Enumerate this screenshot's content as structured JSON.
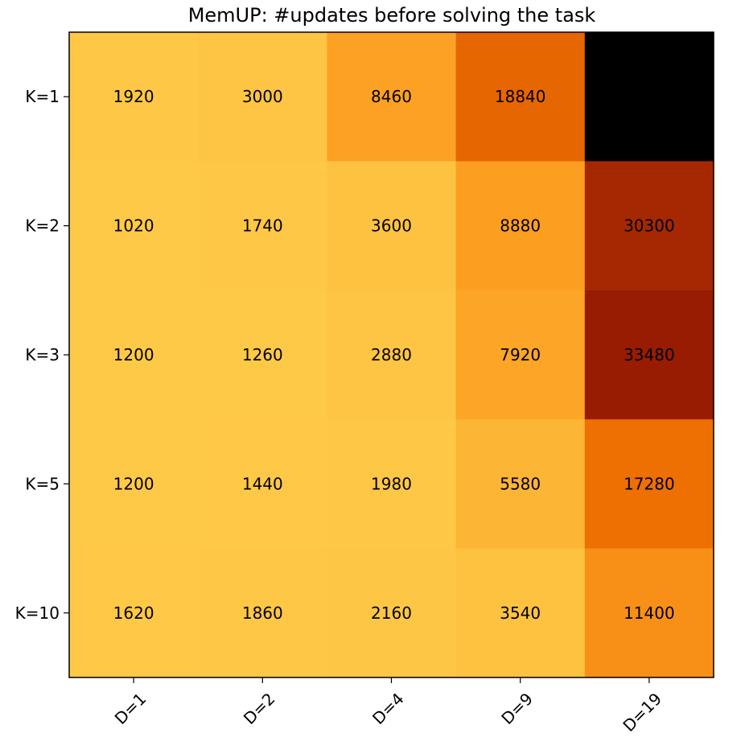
{
  "chart_data": {
    "type": "heatmap",
    "title": "MemUP: #updates before solving the task",
    "xlabel": "",
    "ylabel": "",
    "x_categories": [
      "D=1",
      "D=2",
      "D=4",
      "D=9",
      "D=19"
    ],
    "y_categories": [
      "K=1",
      "K=2",
      "K=3",
      "K=5",
      "K=10"
    ],
    "values": [
      [
        1920,
        3000,
        8460,
        18840,
        null
      ],
      [
        1020,
        1740,
        3600,
        8880,
        30300
      ],
      [
        1200,
        1260,
        2880,
        7920,
        33480
      ],
      [
        1200,
        1440,
        1980,
        5580,
        17280
      ],
      [
        1620,
        1860,
        2160,
        3540,
        11400
      ]
    ],
    "value_range": [
      0,
      37000
    ],
    "missing_color": "#000000",
    "colormap": "YlOrBr_r",
    "grid": false,
    "legend": "none"
  }
}
